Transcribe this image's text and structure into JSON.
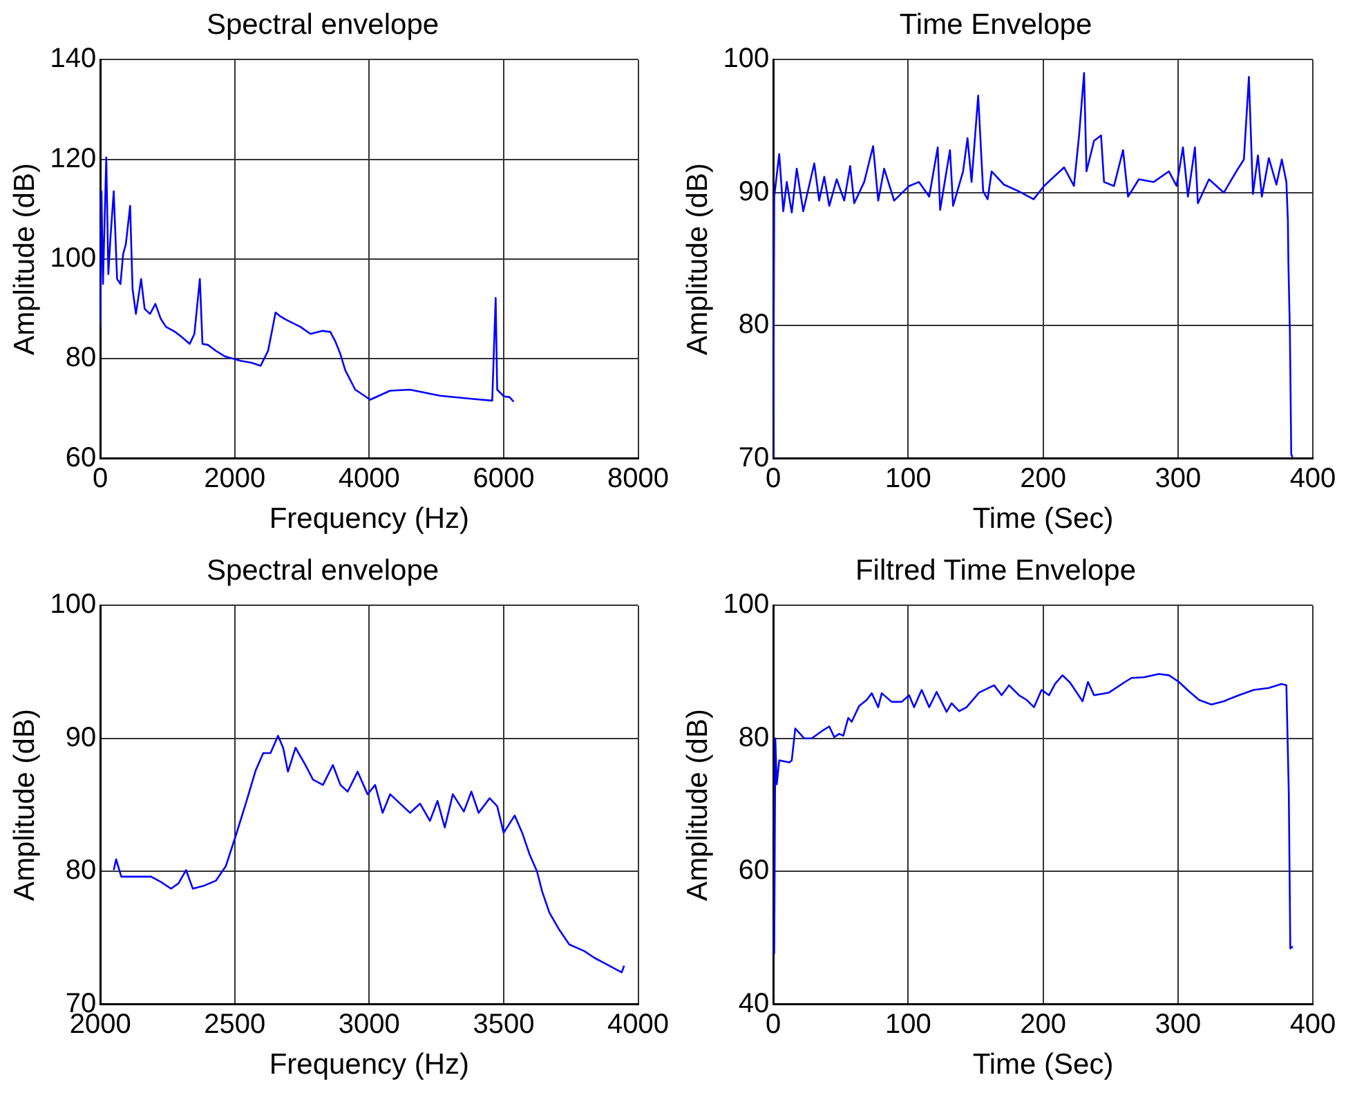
{
  "chart_data": [
    {
      "type": "line",
      "title": "Spectral envelope",
      "xlabel": "Frequency (Hz)",
      "ylabel": "Amplitude (dB)",
      "xlim": [
        0,
        8000
      ],
      "xticks": [
        0,
        2000,
        4000,
        6000,
        8000
      ],
      "ylim": [
        60,
        140
      ],
      "yticks": [
        60,
        80,
        100,
        120,
        140
      ],
      "grid": true,
      "x": [
        0,
        18,
        40,
        89,
        120,
        150,
        200,
        250,
        300,
        340,
        380,
        444,
        480,
        530,
        607,
        660,
        740,
        820,
        900,
        978,
        1100,
        1200,
        1330,
        1400,
        1422,
        1481,
        1520,
        1600,
        1719,
        1850,
        2089,
        2250,
        2385,
        2496,
        2560,
        2607,
        2680,
        2756,
        2978,
        3126,
        3300,
        3422,
        3496,
        3570,
        3644,
        3793,
        4015,
        4311,
        4607,
        5052,
        5496,
        5830,
        5881,
        5904,
        6000,
        6089,
        6148
      ],
      "series": [
        {
          "color": "#0000ff",
          "values": [
            86.4,
            113.6,
            95,
            120.4,
            97,
            104,
            113.6,
            96,
            95,
            101,
            103,
            110.7,
            94,
            89,
            96,
            90,
            89,
            91,
            88,
            86.4,
            85.5,
            84.5,
            83,
            85,
            88,
            96,
            83,
            82.8,
            81.6,
            80.5,
            79.6,
            79.2,
            78.6,
            81.6,
            86,
            89.3,
            88.5,
            87.9,
            86.4,
            85,
            85.6,
            85.4,
            83.5,
            81,
            77.7,
            73.8,
            71.8,
            73.6,
            73.8,
            72.6,
            72,
            71.6,
            92.2,
            73.8,
            72.5,
            72.3,
            71.4
          ]
        }
      ]
    },
    {
      "type": "line",
      "title": "Time Envelope",
      "xlabel": "Time (Sec)",
      "ylabel": "Amplitude (dB)",
      "xlim": [
        0,
        400
      ],
      "xticks": [
        0,
        100,
        200,
        300,
        400
      ],
      "ylim": [
        70,
        100
      ],
      "yticks": [
        70,
        80,
        90,
        100
      ],
      "grid": true,
      "x": [
        0,
        0.7,
        4.4,
        7.4,
        10,
        13.7,
        17.4,
        22.2,
        30.4,
        34,
        37.8,
        41.5,
        47,
        52.6,
        57,
        60,
        67.4,
        74,
        77.8,
        82.2,
        89.6,
        100.7,
        108,
        115.6,
        121.9,
        123.7,
        131,
        133.3,
        140.7,
        144,
        147,
        151.9,
        155.6,
        158.9,
        161.9,
        171,
        182,
        193,
        200.7,
        215.6,
        222.9,
        226.7,
        230.4,
        232.2,
        237.8,
        243,
        245.2,
        252.6,
        259.3,
        263,
        271,
        282,
        293.3,
        299,
        303.7,
        307.4,
        312.6,
        314.8,
        323,
        334,
        343.3,
        348.9,
        352.6,
        355.6,
        359.3,
        362.2,
        367.4,
        373,
        377,
        380.4,
        381.5,
        381.9,
        383,
        384,
        385
      ],
      "series": [
        {
          "color": "#0000ff",
          "values": [
            70,
            89.7,
            92.9,
            88.6,
            90.8,
            88.5,
            91.8,
            88.6,
            92.2,
            89.4,
            91.2,
            89,
            91,
            89.4,
            92,
            89.2,
            90.8,
            93.5,
            89.4,
            91.8,
            89.4,
            90.5,
            90.8,
            89.7,
            93.4,
            88.7,
            93.2,
            89,
            91.6,
            94.1,
            90.8,
            97.3,
            90.1,
            89.5,
            91.6,
            90.6,
            90.1,
            89.5,
            90.5,
            91.9,
            90.5,
            94.3,
            99,
            91.6,
            93.9,
            94.3,
            90.8,
            90.5,
            93.2,
            89.7,
            91,
            90.8,
            91.6,
            90.5,
            93.4,
            89.7,
            93.4,
            89.2,
            91,
            90,
            91.6,
            92.5,
            98.7,
            89.9,
            92.8,
            89.7,
            92.6,
            90.6,
            92.5,
            90.8,
            87.9,
            84.6,
            79.5,
            70.3,
            70.1
          ]
        }
      ]
    },
    {
      "type": "line",
      "title": "Spectral envelope",
      "xlabel": "Frequency (Hz)",
      "ylabel": "Amplitude (dB)",
      "xlim": [
        2000,
        4000
      ],
      "xticks": [
        2000,
        2500,
        3000,
        3500,
        4000
      ],
      "ylim": [
        70,
        100
      ],
      "yticks": [
        70,
        80,
        90,
        100
      ],
      "grid": true,
      "x": [
        2050,
        2059,
        2078,
        2133,
        2189,
        2226,
        2263,
        2291,
        2319,
        2344,
        2383,
        2430,
        2467,
        2504,
        2541,
        2578,
        2606,
        2633,
        2661,
        2680,
        2698,
        2726,
        2763,
        2791,
        2828,
        2865,
        2893,
        2920,
        2957,
        2994,
        3022,
        3050,
        3078,
        3115,
        3152,
        3189,
        3226,
        3254,
        3281,
        3311,
        3352,
        3380,
        3407,
        3448,
        3476,
        3500,
        3541,
        3569,
        3596,
        3624,
        3643,
        3670,
        3707,
        3744,
        3800,
        3837,
        3874,
        3911,
        3939,
        3948
      ],
      "series": [
        {
          "color": "#0000ff",
          "values": [
            80.1,
            80.9,
            79.6,
            79.6,
            79.6,
            79.2,
            78.7,
            79.1,
            80.1,
            78.7,
            78.9,
            79.3,
            80.4,
            82.7,
            85.1,
            87.6,
            88.9,
            88.9,
            90.2,
            89.3,
            87.5,
            89.3,
            88,
            86.9,
            86.5,
            88,
            86.5,
            86,
            87.5,
            85.8,
            86.5,
            84.4,
            85.8,
            85.1,
            84.4,
            85.1,
            83.8,
            85.3,
            83.3,
            85.8,
            84.5,
            86,
            84.4,
            85.5,
            84.9,
            82.9,
            84.2,
            82.9,
            81.3,
            80,
            78.5,
            76.9,
            75.6,
            74.5,
            74,
            73.5,
            73.1,
            72.7,
            72.4,
            72.9
          ]
        }
      ]
    },
    {
      "type": "line",
      "title": "Filtred Time Envelope",
      "xlabel": "Time (Sec)",
      "ylabel": "Amplitude (dB)",
      "xlim": [
        0,
        400
      ],
      "xticks": [
        0,
        100,
        200,
        300,
        400
      ],
      "ylim": [
        40,
        100
      ],
      "yticks": [
        40,
        60,
        80,
        100
      ],
      "grid": true,
      "x": [
        0.7,
        1.5,
        2.6,
        4.4,
        11.9,
        13.7,
        16.3,
        23,
        28.5,
        36,
        41.5,
        45.2,
        48.9,
        51.9,
        55.6,
        58.1,
        63.7,
        69.3,
        73,
        77.8,
        80.4,
        87.8,
        95.2,
        100.7,
        104.4,
        110,
        115.6,
        121.1,
        128.5,
        132.2,
        137.8,
        143.3,
        152.6,
        163.7,
        169.3,
        174.8,
        182.2,
        187.8,
        193.3,
        198.9,
        204.4,
        208.9,
        214.4,
        220,
        229.3,
        233.3,
        237.8,
        248.9,
        260,
        265.6,
        274.8,
        285.9,
        293.3,
        300.7,
        308.1,
        315.6,
        324.8,
        334,
        345.2,
        356.3,
        367.4,
        376.7,
        380.4,
        382.2,
        383.3,
        385.2
      ],
      "series": [
        {
          "color": "#0000ff",
          "values": [
            47.6,
            80,
            73.1,
            76.7,
            76.4,
            76.7,
            81.5,
            80,
            80,
            81.1,
            81.8,
            80.2,
            80.7,
            80.4,
            83.1,
            82.5,
            84.9,
            85.8,
            86.8,
            84.7,
            86.8,
            85.5,
            85.5,
            86.5,
            84.7,
            87.3,
            84.7,
            87,
            84,
            85.3,
            84.1,
            84.7,
            86.9,
            88,
            86.5,
            88,
            86.5,
            85.8,
            84.7,
            87.3,
            86.5,
            88.2,
            89.5,
            88.4,
            85.6,
            88.5,
            86.5,
            86.9,
            88.4,
            89.1,
            89.2,
            89.7,
            89.5,
            88.5,
            87.1,
            85.8,
            85.1,
            85.6,
            86.5,
            87.3,
            87.6,
            88.2,
            88,
            71.6,
            48.4,
            48.7
          ]
        }
      ]
    }
  ]
}
